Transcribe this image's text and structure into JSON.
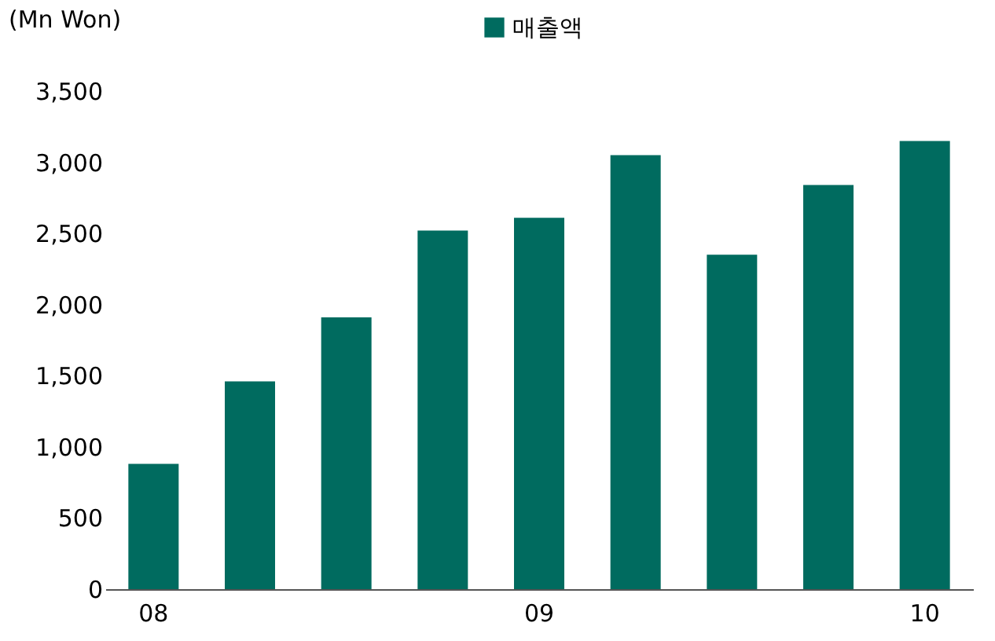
{
  "chart_data": {
    "type": "bar",
    "ylabel": "(Mn Won)",
    "categories": [
      "08",
      null,
      null,
      null,
      "09",
      null,
      null,
      null,
      "10"
    ],
    "series": [
      {
        "name": "매출액",
        "color": "#006b5f",
        "values": [
          880,
          1460,
          1910,
          2520,
          2610,
          3050,
          2350,
          2840,
          3150
        ]
      }
    ],
    "ylim": [
      0,
      3500
    ],
    "yticks": [
      0,
      500,
      {
        "value": 1000,
        "label": "1,000"
      },
      {
        "value": 1500,
        "label": "1,500"
      },
      {
        "value": 2000,
        "label": "2,000"
      },
      {
        "value": 2500,
        "label": "2,500"
      },
      {
        "value": 3000,
        "label": "3,000"
      },
      {
        "value": 3500,
        "label": "3,500"
      }
    ],
    "grid": false,
    "legend": "top"
  }
}
